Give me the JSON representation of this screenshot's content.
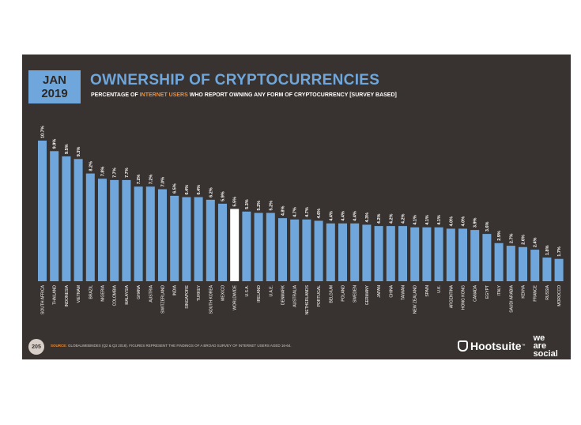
{
  "header": {
    "date_month": "JAN",
    "date_year": "2019",
    "title": "OWNERSHIP OF CRYPTOCURRENCIES",
    "subtitle_pre": "PERCENTAGE OF ",
    "subtitle_highlight": "INTERNET USERS",
    "subtitle_post": " WHO REPORT OWNING ANY FORM OF CRYPTOCURRENCY [SURVEY BASED]"
  },
  "footer": {
    "page_number": "205",
    "source_label": "SOURCE:",
    "source_text": "GLOBALWEBINDEX (Q2 & Q3 2018). FIGURES REPRESENT THE FINDINGS OF A BROAD SURVEY OF INTERNET USERS AGED 16-64.",
    "brand_name": "Hootsuite",
    "brand_tm": "™",
    "we": "we",
    "are": "are",
    "social": "social"
  },
  "colors": {
    "background": "#383330",
    "bar": "#6fa7dc",
    "highlight_bar": "#ffffff",
    "accent": "#f28b30"
  },
  "chart_data": {
    "type": "bar",
    "categories": [
      "SOUTH AFRICA",
      "THAILAND",
      "INDONESIA",
      "VIETNAM",
      "BRAZIL",
      "NIGERIA",
      "COLOMBIA",
      "MALAYSIA",
      "GHANA",
      "AUSTRIA",
      "SWITZERLAND",
      "INDIA",
      "SINGAPORE",
      "TURKEY",
      "SOUTH KOREA",
      "MEXICO",
      "WORLDWIDE",
      "U.S.A.",
      "IRELAND",
      "U.A.E.",
      "DENMARK",
      "AUSTRALIA",
      "NETHERLANDS",
      "PORTUGAL",
      "BELGIUM",
      "POLAND",
      "SWEDEN",
      "GERMANY",
      "JAPAN",
      "CHINA",
      "TAIWAN",
      "NEW ZEALAND",
      "SPAIN",
      "U.K.",
      "ARGENTINA",
      "HONG KONG",
      "CANADA",
      "EGYPT",
      "ITALY",
      "SAUDI ARABIA",
      "KENYA",
      "FRANCE",
      "RUSSIA",
      "MOROCCO"
    ],
    "values": [
      10.7,
      9.9,
      9.5,
      9.3,
      8.2,
      7.8,
      7.7,
      7.7,
      7.2,
      7.2,
      7.0,
      6.5,
      6.4,
      6.4,
      6.2,
      5.9,
      5.5,
      5.3,
      5.2,
      5.2,
      4.8,
      4.7,
      4.7,
      4.6,
      4.4,
      4.4,
      4.4,
      4.3,
      4.2,
      4.2,
      4.2,
      4.1,
      4.1,
      4.1,
      4.0,
      4.0,
      3.9,
      3.6,
      2.9,
      2.7,
      2.6,
      2.4,
      1.8,
      1.7
    ],
    "data_labels": [
      "10.7%",
      "9.9%",
      "9.5%",
      "9.3%",
      "8.2%",
      "7.8%",
      "7.7%",
      "7.7%",
      "7.2%",
      "7.2%",
      "7.0%",
      "6.5%",
      "6.4%",
      "6.4%",
      "6.2%",
      "5.9%",
      "5.5%",
      "5.3%",
      "5.2%",
      "5.2%",
      "4.8%",
      "4.7%",
      "4.7%",
      "4.6%",
      "4.4%",
      "4.4%",
      "4.4%",
      "4.3%",
      "4.2%",
      "4.2%",
      "4.2%",
      "4.1%",
      "4.1%",
      "4.1%",
      "4.0%",
      "4.0%",
      "3.9%",
      "3.6%",
      "2.9%",
      "2.7%",
      "2.6%",
      "2.4%",
      "1.8%",
      "1.7%"
    ],
    "highlight": "WORLDWIDE",
    "ylim": [
      0,
      10.7
    ],
    "grid": false,
    "legend": "none"
  }
}
